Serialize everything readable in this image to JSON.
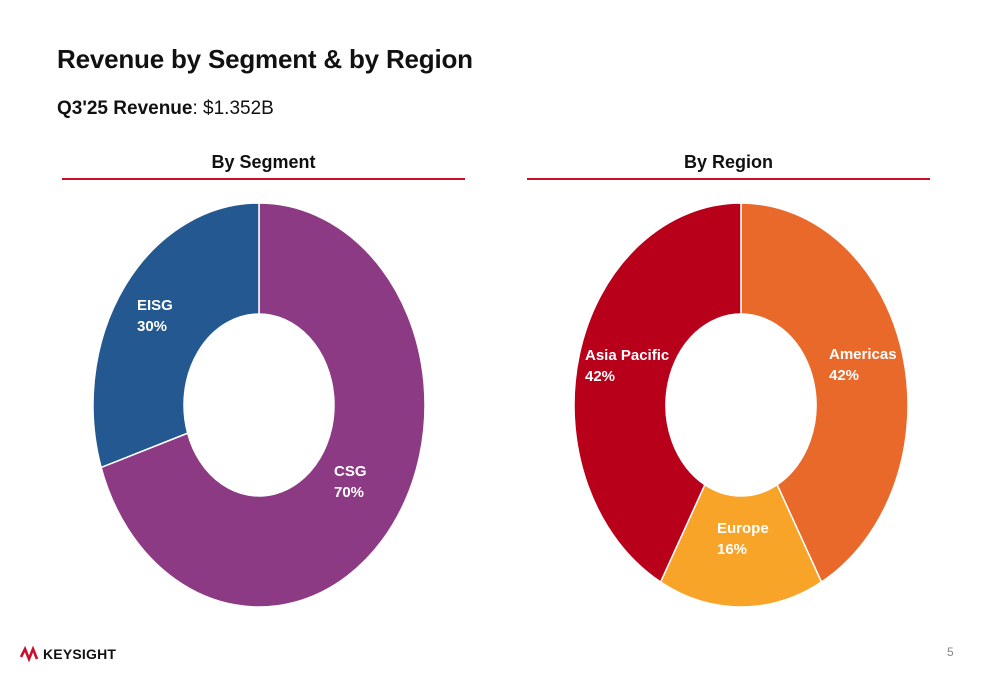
{
  "page": {
    "title": "Revenue by Segment & by Region",
    "revenue_label": "Q3'25 Revenue",
    "revenue_value": ": $1.352B",
    "page_number": "5",
    "logo_text": "KEYSIGHT",
    "accent_color": "#c8102e"
  },
  "chart_data": [
    {
      "type": "pie",
      "title": "By Segment",
      "donut": true,
      "slices": [
        {
          "label": "CSG",
          "value": 70,
          "value_label": "70%",
          "color": "#8b3a83"
        },
        {
          "label": "EISG",
          "value": 30,
          "value_label": "30%",
          "color": "#245891"
        }
      ]
    },
    {
      "type": "pie",
      "title": "By Region",
      "donut": true,
      "slices": [
        {
          "label": "Americas",
          "value": 42,
          "value_label": "42%",
          "color": "#e8692a"
        },
        {
          "label": "Europe",
          "value": 16,
          "value_label": "16%",
          "color": "#f8a428"
        },
        {
          "label": "Asia Pacific",
          "value": 42,
          "value_label": "42%",
          "color": "#b8001a"
        }
      ]
    }
  ]
}
